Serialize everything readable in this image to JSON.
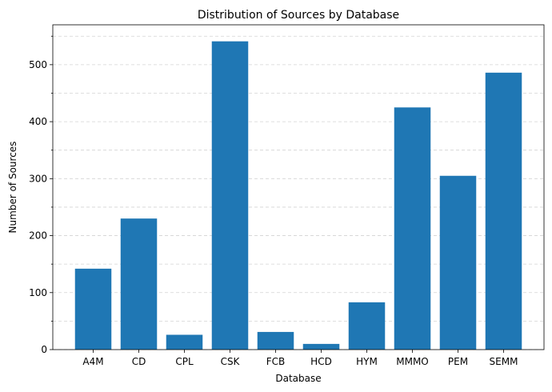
{
  "chart_data": {
    "type": "bar",
    "title": "Distribution of Sources by Database",
    "xlabel": "Database",
    "ylabel": "Number of Sources",
    "categories": [
      "A4M",
      "CD",
      "CPL",
      "CSK",
      "FCB",
      "HCD",
      "HYM",
      "MMMO",
      "PEM",
      "SEMM"
    ],
    "values": [
      142,
      230,
      26,
      541,
      31,
      10,
      83,
      425,
      305,
      486
    ],
    "ylim": [
      0,
      570
    ],
    "yticks": [
      0,
      100,
      200,
      300,
      400,
      500
    ],
    "yticks_minor": [
      50,
      150,
      250,
      350,
      450,
      550
    ],
    "grid": true,
    "bar_color": "#1f77b4"
  }
}
